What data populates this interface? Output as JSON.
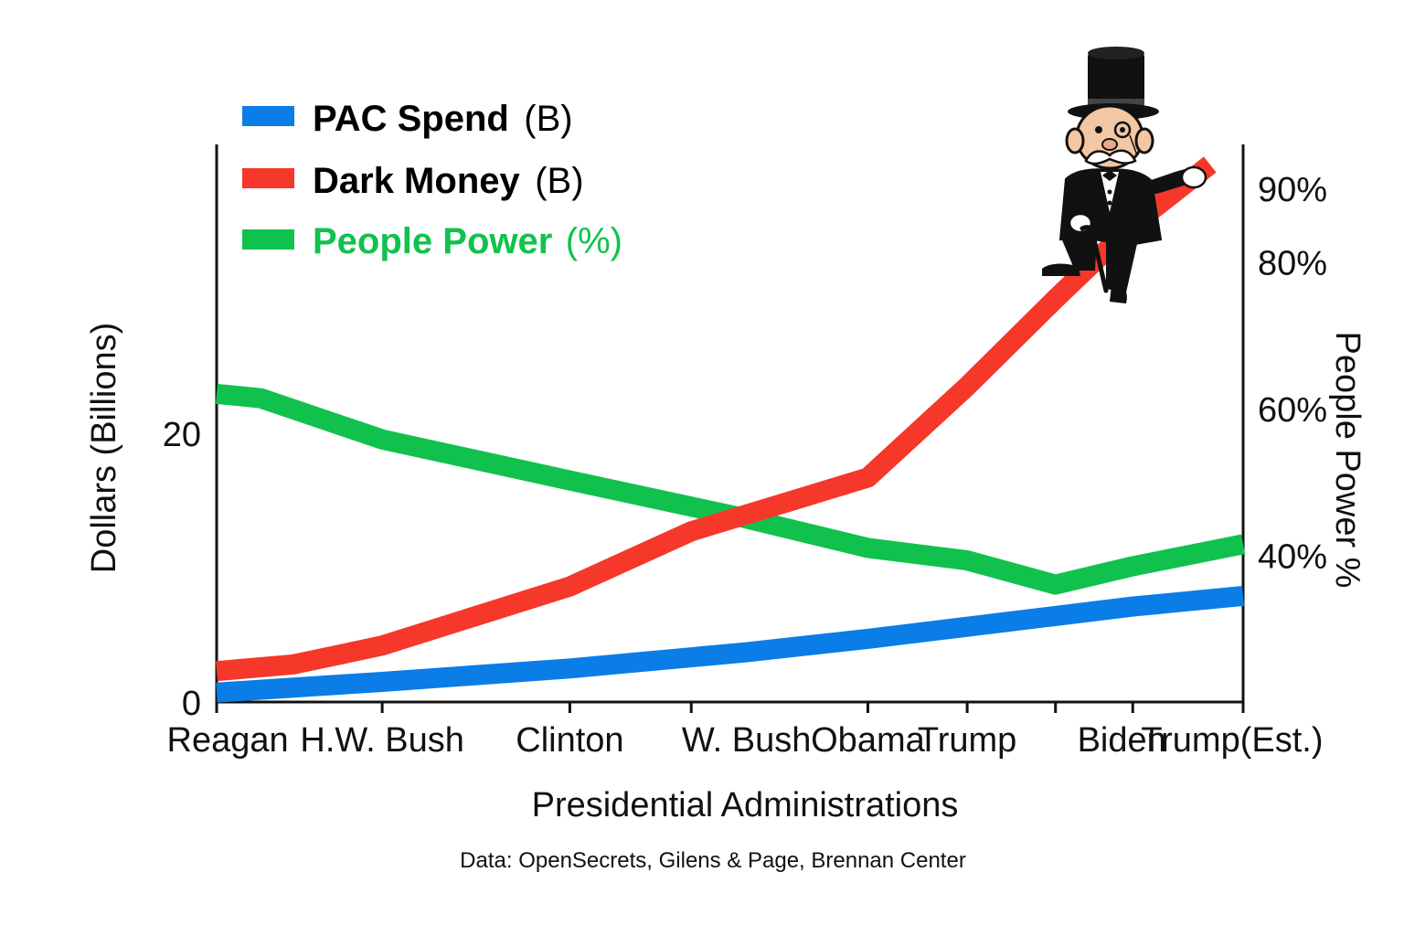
{
  "chart_data": {
    "type": "line",
    "categories": [
      "Reagan",
      "H.W. Bush",
      "Clinton",
      "W. Bush",
      "Obama",
      "Trump",
      "Biden",
      "Trump(Est.)"
    ],
    "x_labels": [
      {
        "label": "Reagan",
        "x": 0.1
      },
      {
        "label": "H.W. Bush",
        "x": 1.5
      },
      {
        "label": "Clinton",
        "x": 3.2
      },
      {
        "label": "W. Bush",
        "x": 4.8
      },
      {
        "label": "Obama",
        "x": 5.9
      },
      {
        "label": "Trump",
        "x": 6.8
      },
      {
        "label": "Biden",
        "x": 8.2
      },
      {
        "label": "Trump(Est.)",
        "x": 9.2
      }
    ],
    "x_ticks": [
      0,
      1.5,
      3.2,
      4.3,
      5.9,
      6.8,
      7.6,
      8.3,
      9.3
    ],
    "xlim": [
      0,
      9.3
    ],
    "xlabel": "Presidential Administrations",
    "ylabel": "Dollars (Billions)",
    "y2label": "People Power %",
    "ylim": [
      0,
      41.5
    ],
    "y2lim": [
      20,
      96
    ],
    "y_ticks": [
      {
        "value": 0,
        "label": "0"
      },
      {
        "value": 20,
        "label": "20"
      }
    ],
    "y2_ticks": [
      {
        "value": 40,
        "label": "40%"
      },
      {
        "value": 60,
        "label": "60%"
      },
      {
        "value": 80,
        "label": "80%"
      },
      {
        "value": 90,
        "label": "90%"
      }
    ],
    "series": [
      {
        "name": "PAC Spend",
        "unit": "(B)",
        "color": "#0a7de6",
        "axis": "left",
        "points": [
          [
            0,
            0.7
          ],
          [
            1.5,
            1.5
          ],
          [
            3.2,
            2.5
          ],
          [
            4.8,
            3.7
          ],
          [
            5.9,
            4.7
          ],
          [
            6.8,
            5.6
          ],
          [
            7.6,
            6.4
          ],
          [
            8.3,
            7.1
          ],
          [
            9.3,
            7.9
          ]
        ]
      },
      {
        "name": "Dark Money",
        "unit": "(B)",
        "color": "#f5382a",
        "axis": "left",
        "points": [
          [
            0,
            2.3
          ],
          [
            0.7,
            2.8
          ],
          [
            1.5,
            4.2
          ],
          [
            3.2,
            8.6
          ],
          [
            4.3,
            12.7
          ],
          [
            5.9,
            16.7
          ],
          [
            6.8,
            23.5
          ],
          [
            7.6,
            30.0
          ],
          [
            8.3,
            35.5
          ],
          [
            9.0,
            40.0
          ]
        ]
      },
      {
        "name": "People Power",
        "unit": "(%)",
        "color": "#10c24d",
        "axis": "right",
        "points": [
          [
            0,
            62.0
          ],
          [
            0.4,
            61.4
          ],
          [
            1.5,
            55.8
          ],
          [
            3.2,
            50.2
          ],
          [
            4.8,
            45.0
          ],
          [
            5.9,
            41.0
          ],
          [
            6.8,
            39.3
          ],
          [
            7.6,
            36.0
          ],
          [
            8.3,
            38.5
          ],
          [
            9.3,
            41.5
          ]
        ]
      }
    ],
    "legend_position": "top-left",
    "grid": false,
    "source_note": "Data: OpenSecrets, Gilens & Page, Brennan Center",
    "illustration": "monopoly-man-icon"
  }
}
